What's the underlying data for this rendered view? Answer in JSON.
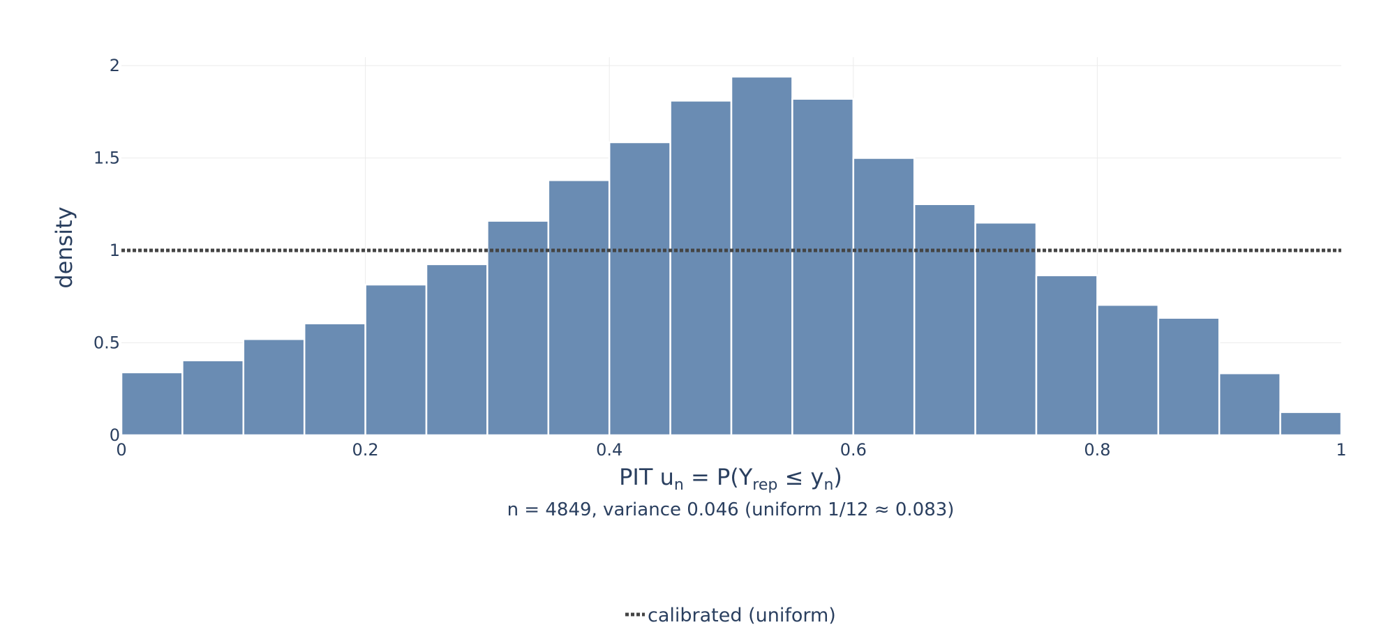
{
  "chart_data": {
    "type": "bar",
    "bin_edges": [
      0,
      0.05,
      0.1,
      0.15,
      0.2,
      0.25,
      0.3,
      0.35,
      0.4,
      0.45,
      0.5,
      0.55,
      0.6,
      0.65,
      0.7,
      0.75,
      0.8,
      0.85,
      0.9,
      0.95,
      1.0
    ],
    "values": [
      0.34,
      0.405,
      0.52,
      0.605,
      0.815,
      0.925,
      1.16,
      1.38,
      1.585,
      1.81,
      1.94,
      1.82,
      1.5,
      1.25,
      1.15,
      0.865,
      0.705,
      0.635,
      0.335,
      0.125
    ],
    "reference_line": {
      "y": 1,
      "style": "dotted",
      "name": "calibrated (uniform)"
    },
    "xlim": [
      0,
      1
    ],
    "ylim": [
      0,
      2
    ],
    "x_ticks": [
      "0",
      "0.2",
      "0.4",
      "0.6",
      "0.8",
      "1"
    ],
    "x_tick_values": [
      0,
      0.2,
      0.4,
      0.6,
      0.8,
      1
    ],
    "y_ticks": [
      "0",
      "0.5",
      "1",
      "1.5",
      "2"
    ],
    "y_tick_values": [
      0,
      0.5,
      1,
      1.5,
      2
    ],
    "xlabel": {
      "prefix": "PIT  u",
      "sub1": "n",
      "mid": " = P(Y",
      "sub2": "rep",
      "mid2": " ≤ y",
      "sub3": "n",
      "suffix": ")"
    },
    "subtitle": "n = 4849, variance 0.046 (uniform 1/12 ≈ 0.083)",
    "ylabel": "density",
    "legend": [
      "calibrated (uniform)"
    ],
    "legend_position": "bottom-center",
    "grid": true,
    "colors": {
      "bar": "#6a8cb3",
      "bar_edge": "#ffffff",
      "reference": "#444444",
      "grid": "#ebebeb",
      "text": "#2a3f5f"
    }
  }
}
